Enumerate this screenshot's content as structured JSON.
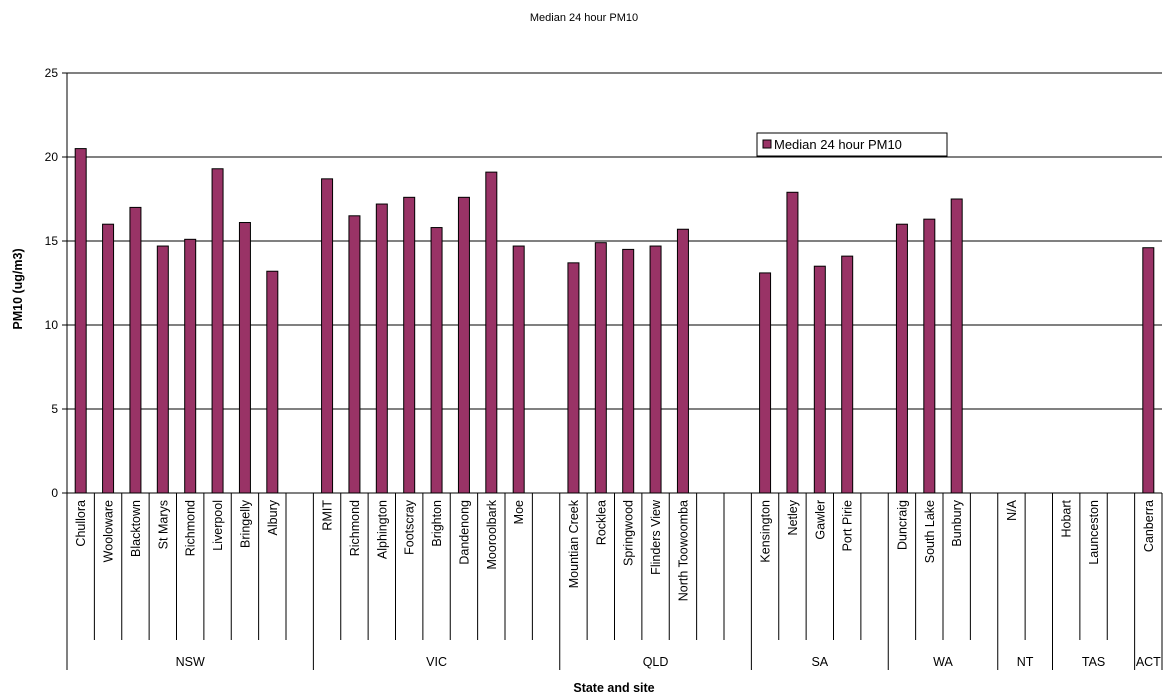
{
  "chart_data": {
    "type": "bar",
    "title": "Median 24 hour PM10",
    "xlabel": "State and site",
    "ylabel": "PM10 (ug/m3)",
    "ylim": [
      0,
      25
    ],
    "yticks": [
      0,
      5,
      10,
      15,
      20,
      25
    ],
    "grid": true,
    "legend_position": "top-right",
    "bar_color": "#993366",
    "series": [
      {
        "name": "Median 24 hour PM10"
      }
    ],
    "categories": [
      {
        "site": "Chullora",
        "state": "NSW",
        "value": 20.5
      },
      {
        "site": "Wooloware",
        "state": "NSW",
        "value": 16.0
      },
      {
        "site": "Blacktown",
        "state": "NSW",
        "value": 17.0
      },
      {
        "site": "St Marys",
        "state": "NSW",
        "value": 14.7
      },
      {
        "site": "Richmond",
        "state": "NSW",
        "value": 15.1
      },
      {
        "site": "Liverpool",
        "state": "NSW",
        "value": 19.3
      },
      {
        "site": "Bringelly",
        "state": "NSW",
        "value": 16.1
      },
      {
        "site": "Albury",
        "state": "NSW",
        "value": 13.2
      },
      {
        "site": "",
        "state": "NSW",
        "value": null
      },
      {
        "site": "RMIT",
        "state": "VIC",
        "value": 18.7
      },
      {
        "site": "Richmond",
        "state": "VIC",
        "value": 16.5
      },
      {
        "site": "Alphington",
        "state": "VIC",
        "value": 17.2
      },
      {
        "site": "Footscray",
        "state": "VIC",
        "value": 17.6
      },
      {
        "site": "Brighton",
        "state": "VIC",
        "value": 15.8
      },
      {
        "site": "Dandenong",
        "state": "VIC",
        "value": 17.6
      },
      {
        "site": "Mooroolbark",
        "state": "VIC",
        "value": 19.1
      },
      {
        "site": "Moe",
        "state": "VIC",
        "value": 14.7
      },
      {
        "site": "",
        "state": "VIC",
        "value": null
      },
      {
        "site": "Mountian Creek",
        "state": "QLD",
        "value": 13.7
      },
      {
        "site": "Rocklea",
        "state": "QLD",
        "value": 14.9
      },
      {
        "site": "Springwood",
        "state": "QLD",
        "value": 14.5
      },
      {
        "site": "Flinders View",
        "state": "QLD",
        "value": 14.7
      },
      {
        "site": "North Toowoomba",
        "state": "QLD",
        "value": 15.7
      },
      {
        "site": "",
        "state": "QLD",
        "value": null
      },
      {
        "site": "",
        "state": "QLD",
        "value": null
      },
      {
        "site": "Kensington",
        "state": "SA",
        "value": 13.1
      },
      {
        "site": "Netley",
        "state": "SA",
        "value": 17.9
      },
      {
        "site": "Gawler",
        "state": "SA",
        "value": 13.5
      },
      {
        "site": "Port Pirie",
        "state": "SA",
        "value": 14.1
      },
      {
        "site": "",
        "state": "SA",
        "value": null
      },
      {
        "site": "Duncraig",
        "state": "WA",
        "value": 16.0
      },
      {
        "site": "South Lake",
        "state": "WA",
        "value": 16.3
      },
      {
        "site": "Bunbury",
        "state": "WA",
        "value": 17.5
      },
      {
        "site": "",
        "state": "WA",
        "value": null
      },
      {
        "site": "N/A",
        "state": "NT",
        "value": null
      },
      {
        "site": "",
        "state": "NT",
        "value": null
      },
      {
        "site": "Hobart",
        "state": "TAS",
        "value": null
      },
      {
        "site": "Launceston",
        "state": "TAS",
        "value": null
      },
      {
        "site": "",
        "state": "TAS",
        "value": null
      },
      {
        "site": "Canberra",
        "state": "ACT",
        "value": 14.6
      }
    ],
    "groups": [
      "NSW",
      "VIC",
      "QLD",
      "SA",
      "WA",
      "NT",
      "TAS",
      "ACT"
    ]
  }
}
